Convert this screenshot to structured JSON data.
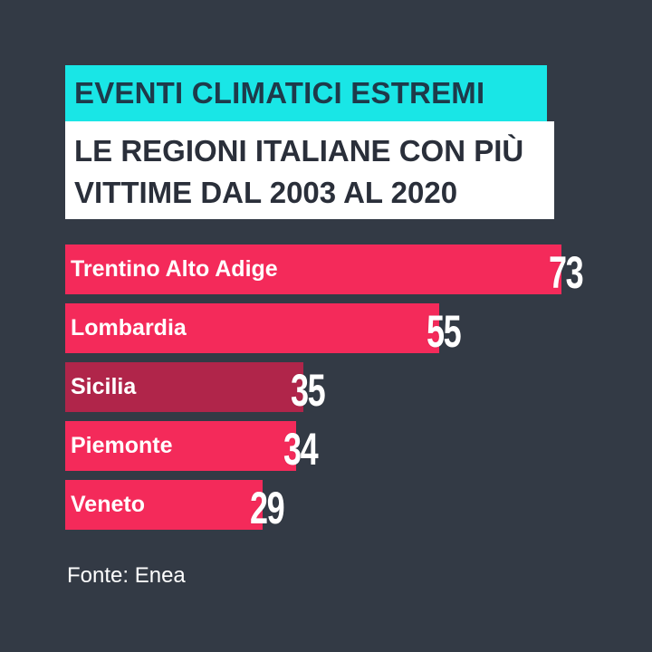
{
  "title": "EVENTI CLIMATICI ESTREMI",
  "subtitle_lines": [
    "LE REGIONI ITALIANE CON PIÙ",
    "VITTIME DAL 2003 AL 2020"
  ],
  "source": "Fonte: Enea",
  "colors": {
    "background": "#333a45",
    "title_bg": "#19e6e6",
    "bar": "#f42a5a",
    "bar_highlight": "#b0254a"
  },
  "chart_data": {
    "type": "bar",
    "orientation": "horizontal",
    "title": "EVENTI CLIMATICI ESTREMI",
    "subtitle": "LE REGIONI ITALIANE CON PIÙ VITTIME DAL 2003 AL 2020",
    "categories": [
      "Trentino Alto Adige",
      "Lombardia",
      "Sicilia",
      "Piemonte",
      "Veneto"
    ],
    "values": [
      73,
      55,
      35,
      34,
      29
    ],
    "highlight_index": 2,
    "xlim": [
      0,
      73
    ],
    "source": "Fonte: Enea"
  }
}
